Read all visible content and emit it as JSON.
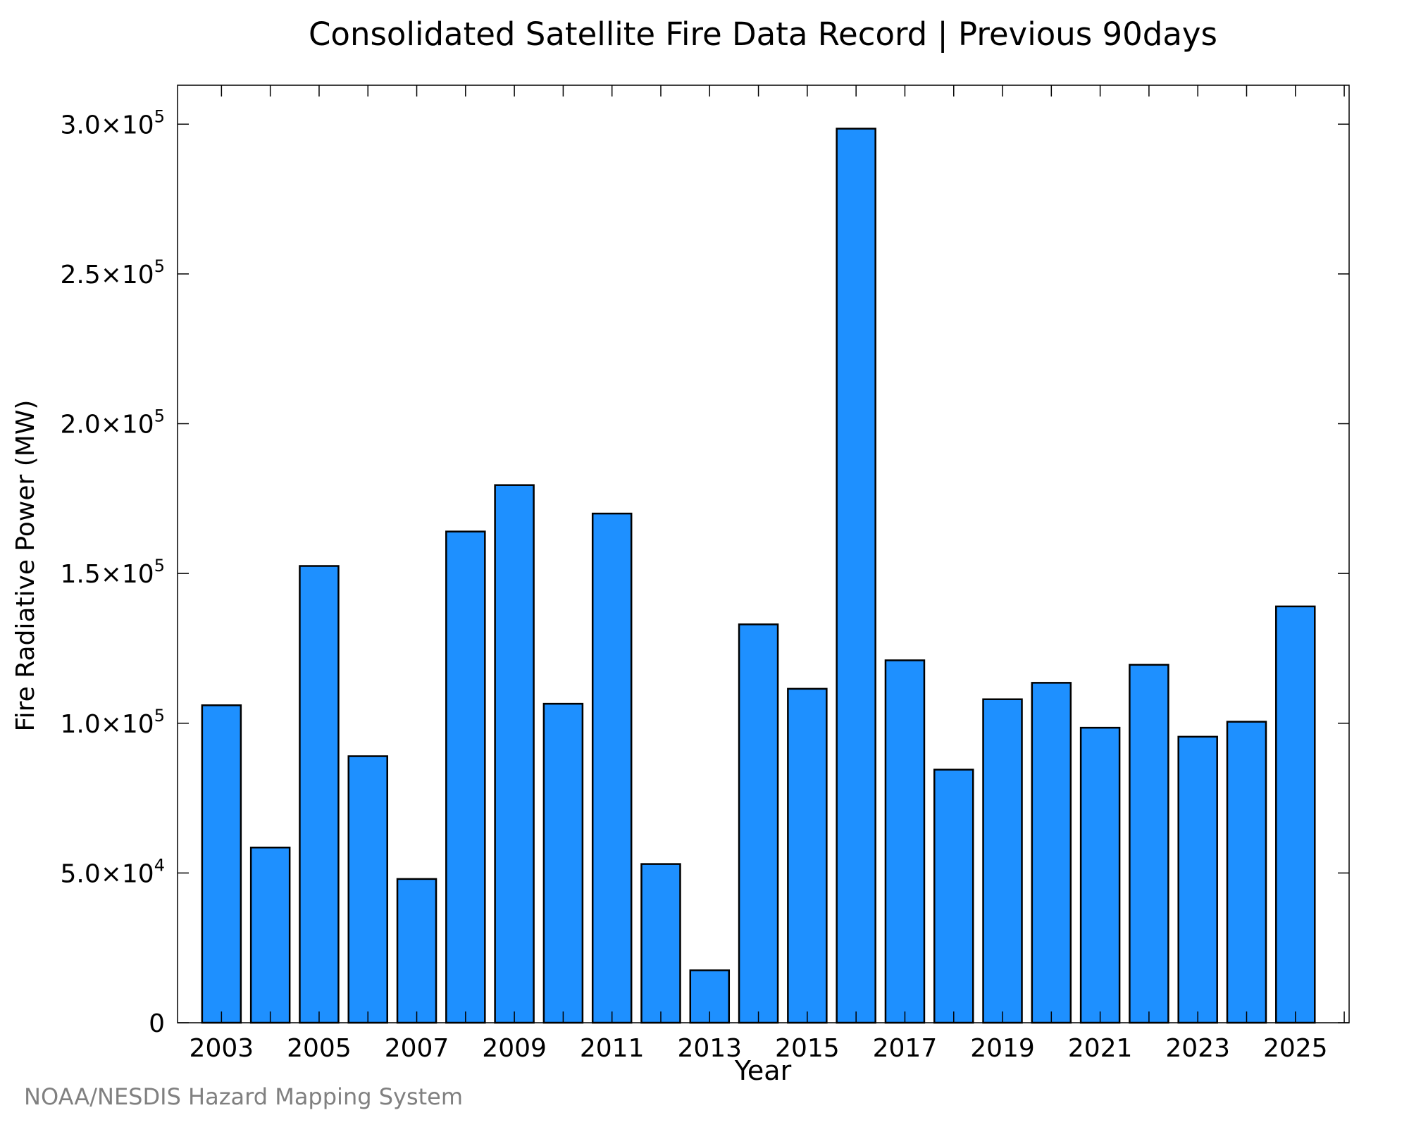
{
  "chart_data": {
    "type": "bar",
    "title": "Consolidated Satellite Fire Data Record | Previous 90days",
    "xlabel": "Year",
    "ylabel": "Fire Radiative Power (MW)",
    "categories": [
      "2003",
      "2004",
      "2005",
      "2006",
      "2007",
      "2008",
      "2009",
      "2010",
      "2011",
      "2012",
      "2013",
      "2014",
      "2015",
      "2016",
      "2017",
      "2018",
      "2019",
      "2020",
      "2021",
      "2022",
      "2023",
      "2024",
      "2025"
    ],
    "values": [
      106000,
      58500,
      152500,
      89000,
      48000,
      164000,
      179500,
      106500,
      170000,
      53000,
      17500,
      133000,
      111500,
      298500,
      121000,
      84500,
      108000,
      113500,
      98500,
      119500,
      95500,
      100500,
      139000
    ],
    "x_tick_labels": [
      "2003",
      "2005",
      "2007",
      "2009",
      "2011",
      "2013",
      "2015",
      "2017",
      "2019",
      "2021",
      "2023",
      "2025"
    ],
    "y_ticks": [
      {
        "value": 0,
        "mantissa": "0",
        "exp": ""
      },
      {
        "value": 50000,
        "mantissa": "5.0×10",
        "exp": "4"
      },
      {
        "value": 100000,
        "mantissa": "1.0×10",
        "exp": "5"
      },
      {
        "value": 150000,
        "mantissa": "1.5×10",
        "exp": "5"
      },
      {
        "value": 200000,
        "mantissa": "2.0×10",
        "exp": "5"
      },
      {
        "value": 250000,
        "mantissa": "2.5×10",
        "exp": "5"
      },
      {
        "value": 300000,
        "mantissa": "3.0×10",
        "exp": "5"
      }
    ],
    "ylim": [
      0,
      313000
    ],
    "xlim": [
      2002.1,
      2026.1
    ],
    "grid": false,
    "bar_color": "#1e90ff",
    "edge_color": "#000000"
  },
  "credit": "NOAA/NESDIS Hazard Mapping System"
}
